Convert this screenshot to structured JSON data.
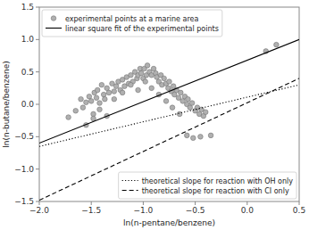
{
  "chart_data": {
    "type": "scatter",
    "xlabel": "ln(n-pentane/benzene)",
    "ylabel": "ln(n-butane/benzene)",
    "xlim": [
      -2.0,
      0.5
    ],
    "ylim": [
      -1.5,
      1.5
    ],
    "xticks": [
      {
        "value": -2.0,
        "label": "−2.0"
      },
      {
        "value": -1.5,
        "label": "−1.5"
      },
      {
        "value": -1.0,
        "label": "−1.0"
      },
      {
        "value": -0.5,
        "label": "−0.5"
      },
      {
        "value": 0.0,
        "label": "0.0"
      },
      0.5
    ],
    "yticks": [
      {
        "value": -1.5,
        "label": "−1.5"
      },
      {
        "value": -1.0,
        "label": "−1.0"
      },
      {
        "value": -0.5,
        "label": "−0.5"
      },
      {
        "value": 0.0,
        "label": "0.0"
      },
      0.5,
      {
        "value": 1.0,
        "label": "1.0"
      },
      1.5
    ],
    "series": [
      {
        "name": "experimental points at a marine area",
        "type": "scatter",
        "marker": "circle",
        "color": "#b0b0b0",
        "legend": "upper left",
        "x": [
          -1.72,
          -1.65,
          -1.6,
          -1.58,
          -1.55,
          -1.52,
          -1.5,
          -1.48,
          -1.47,
          -1.45,
          -1.44,
          -1.42,
          -1.4,
          -1.38,
          -1.37,
          -1.35,
          -1.33,
          -1.3,
          -1.28,
          -1.26,
          -1.24,
          -1.22,
          -1.2,
          -1.18,
          -1.16,
          -1.14,
          -1.12,
          -1.1,
          -1.08,
          -1.06,
          -1.05,
          -1.03,
          -1.02,
          -1.0,
          -0.99,
          -0.97,
          -0.96,
          -0.94,
          -0.92,
          -0.9,
          -0.88,
          -0.87,
          -0.85,
          -0.83,
          -0.82,
          -0.8,
          -0.78,
          -0.76,
          -0.75,
          -0.73,
          -0.71,
          -0.7,
          -0.68,
          -0.66,
          -0.64,
          -0.62,
          -0.6,
          -0.58,
          -0.57,
          -0.55,
          -0.53,
          -0.5,
          -0.48,
          -0.46,
          -0.44,
          -0.42,
          -0.4,
          -1.55,
          -1.48,
          -1.42,
          -1.35,
          -1.28,
          -1.2,
          -1.12,
          -1.05,
          -0.98,
          -0.92,
          -0.85,
          -0.78,
          -0.72,
          -0.65,
          -0.58,
          -0.52,
          -0.45,
          -0.35,
          0.18,
          0.28
        ],
        "values": [
          -0.2,
          -0.1,
          0.08,
          -0.05,
          0.03,
          0.12,
          0.05,
          -0.15,
          0.18,
          0.1,
          0.22,
          0.02,
          0.3,
          0.15,
          0.08,
          0.25,
          0.18,
          0.32,
          0.2,
          0.28,
          0.35,
          0.22,
          0.38,
          0.28,
          0.42,
          0.32,
          0.45,
          0.35,
          0.5,
          0.4,
          0.45,
          0.55,
          0.48,
          0.4,
          0.55,
          0.45,
          0.6,
          0.5,
          0.45,
          0.55,
          0.48,
          0.42,
          0.35,
          0.45,
          0.3,
          0.4,
          0.32,
          0.25,
          0.35,
          0.2,
          0.28,
          0.15,
          0.22,
          0.1,
          0.18,
          0.05,
          0.12,
          0.0,
          0.08,
          -0.05,
          0.02,
          -0.1,
          -0.05,
          -0.15,
          -0.08,
          -0.18,
          -0.12,
          -0.32,
          -0.22,
          -0.08,
          -0.18,
          0.08,
          0.18,
          0.3,
          0.22,
          0.35,
          0.25,
          0.15,
          0.05,
          -0.05,
          -0.15,
          -0.48,
          -0.52,
          -0.5,
          -0.48,
          0.82,
          0.92
        ]
      },
      {
        "name": "linear square fit of the experimental points",
        "type": "line",
        "line_style": "solid",
        "color": "#000000",
        "legend": "upper left",
        "x": [
          -2.0,
          0.5
        ],
        "values": [
          -0.6,
          1.0
        ]
      },
      {
        "name": "theoretical slope for reaction with OH only",
        "type": "line",
        "line_style": "dotted",
        "color": "#000000",
        "legend": "lower right",
        "x": [
          -2.0,
          0.5
        ],
        "values": [
          -0.65,
          0.3
        ]
      },
      {
        "name": "theoretical slope for reaction with CI only",
        "type": "line",
        "line_style": "dashed",
        "color": "#000000",
        "legend": "lower right",
        "x": [
          -2.0,
          0.5
        ],
        "values": [
          -1.48,
          0.4
        ]
      }
    ]
  }
}
